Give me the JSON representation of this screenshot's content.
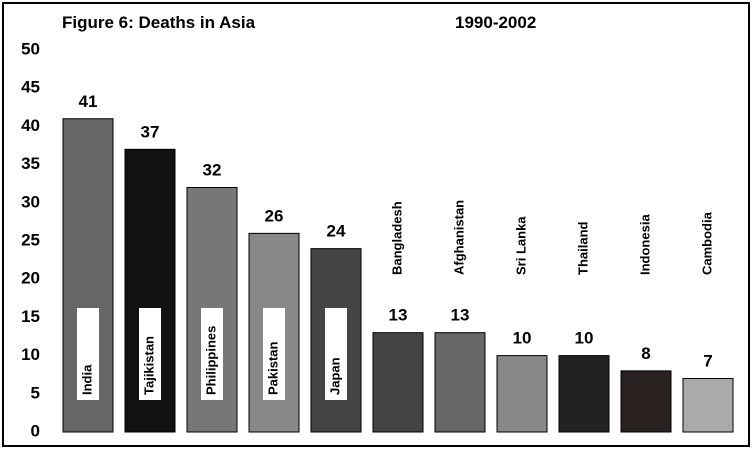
{
  "chart_data": {
    "type": "bar",
    "title": "Figure 6: Deaths in Asia",
    "subtitle": "1990-2002",
    "categories": [
      "India",
      "Tajikistan",
      "Philippines",
      "Pakistan",
      "Japan",
      "Bangladesh",
      "Afghanistan",
      "Sri Lanka",
      "Thailand",
      "Indonesia",
      "Cambodia"
    ],
    "values": [
      41,
      37,
      32,
      26,
      24,
      13,
      13,
      10,
      10,
      8,
      7
    ],
    "colors": [
      "#666666",
      "#111111",
      "#777777",
      "#888888",
      "#444444",
      "#444444",
      "#666666",
      "#888888",
      "#222222",
      "#2a2220",
      "#aaaaaa"
    ],
    "ylim": [
      0,
      50
    ],
    "yticks": [
      0,
      5,
      10,
      15,
      20,
      25,
      30,
      35,
      40,
      45,
      50
    ],
    "grid": false
  }
}
